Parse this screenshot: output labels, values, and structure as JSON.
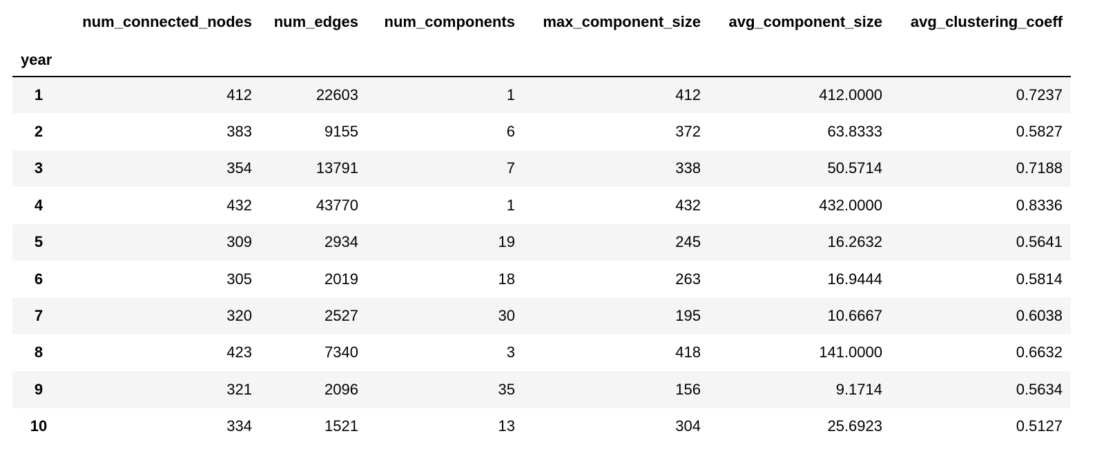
{
  "table": {
    "index_name": "year",
    "columns": [
      "num_connected_nodes",
      "num_edges",
      "num_components",
      "max_component_size",
      "avg_component_size",
      "avg_clustering_coeff"
    ],
    "rows": [
      {
        "year": "1",
        "cells": [
          "412",
          "22603",
          "1",
          "412",
          "412.0000",
          "0.7237"
        ]
      },
      {
        "year": "2",
        "cells": [
          "383",
          "9155",
          "6",
          "372",
          "63.8333",
          "0.5827"
        ]
      },
      {
        "year": "3",
        "cells": [
          "354",
          "13791",
          "7",
          "338",
          "50.5714",
          "0.7188"
        ]
      },
      {
        "year": "4",
        "cells": [
          "432",
          "43770",
          "1",
          "432",
          "432.0000",
          "0.8336"
        ]
      },
      {
        "year": "5",
        "cells": [
          "309",
          "2934",
          "19",
          "245",
          "16.2632",
          "0.5641"
        ]
      },
      {
        "year": "6",
        "cells": [
          "305",
          "2019",
          "18",
          "263",
          "16.9444",
          "0.5814"
        ]
      },
      {
        "year": "7",
        "cells": [
          "320",
          "2527",
          "30",
          "195",
          "10.6667",
          "0.6038"
        ]
      },
      {
        "year": "8",
        "cells": [
          "423",
          "7340",
          "3",
          "418",
          "141.0000",
          "0.6632"
        ]
      },
      {
        "year": "9",
        "cells": [
          "321",
          "2096",
          "35",
          "156",
          "9.1714",
          "0.5634"
        ]
      },
      {
        "year": "10",
        "cells": [
          "334",
          "1521",
          "13",
          "304",
          "25.6923",
          "0.5127"
        ]
      }
    ]
  },
  "colors": {
    "stripe": "#f5f5f5",
    "text": "#000000",
    "header_rule": "#000000"
  }
}
